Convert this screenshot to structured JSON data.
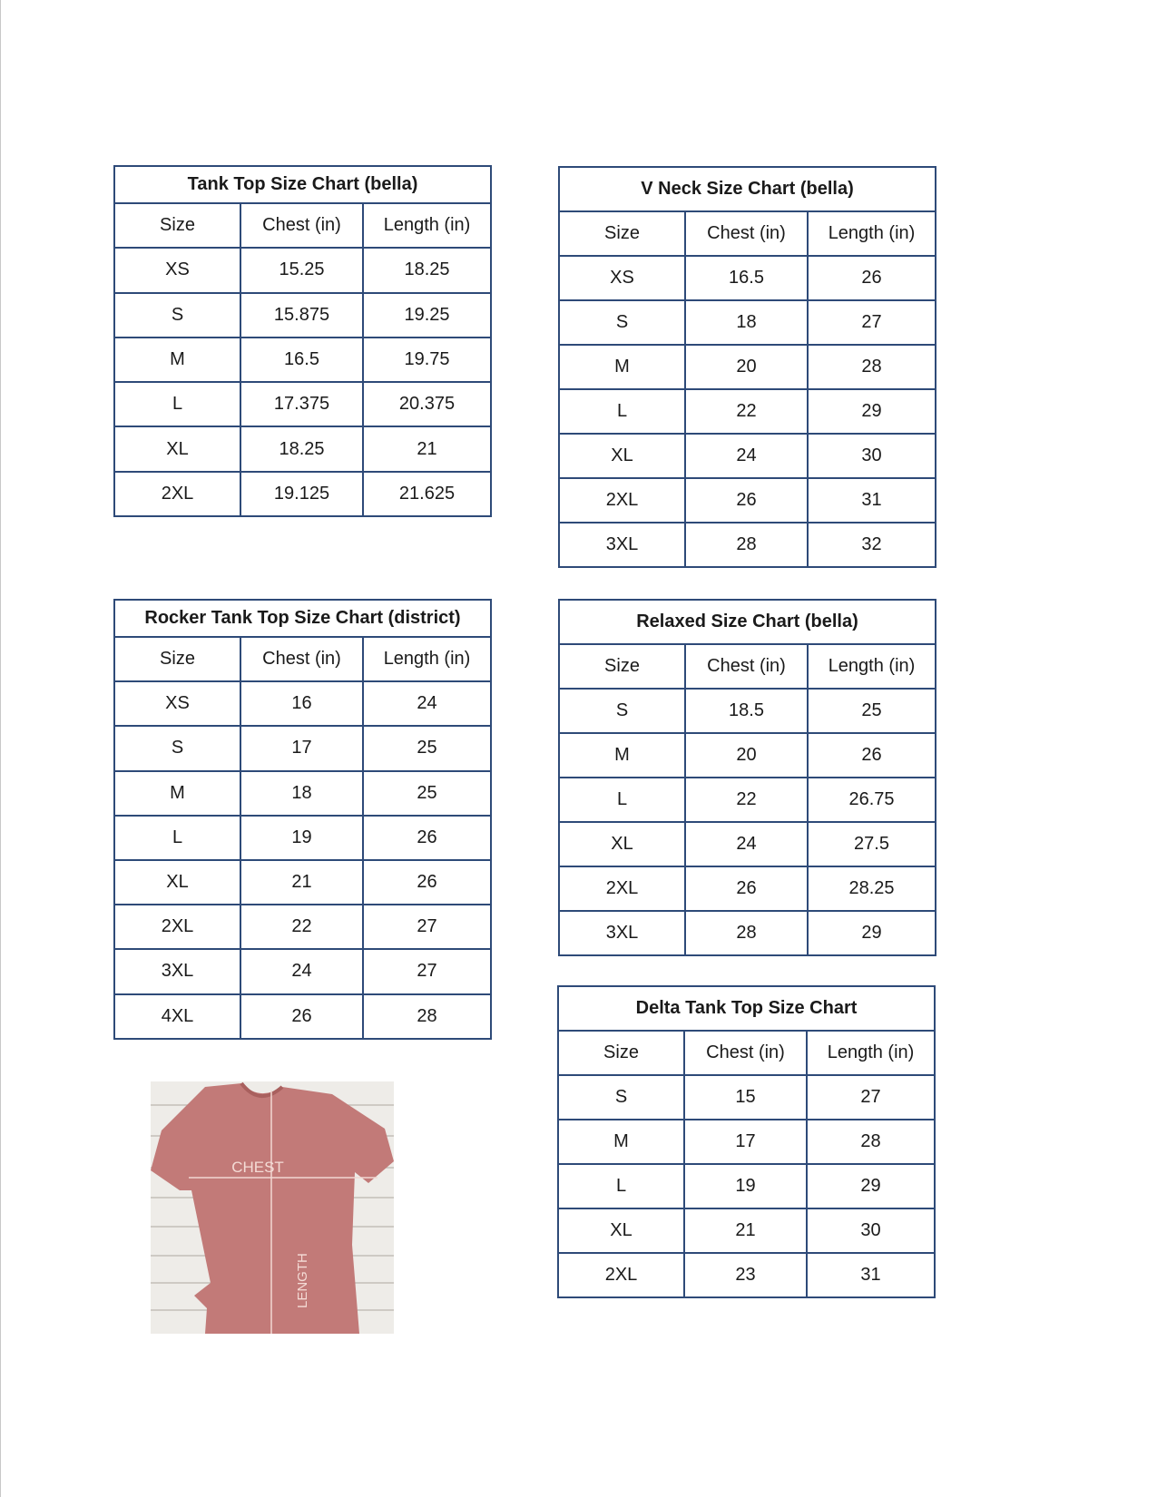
{
  "tables": [
    {
      "id": "tank-top-bella",
      "title": "Tank Top Size Chart  (bella)",
      "headers": [
        "Size",
        "Chest (in)",
        "Length (in)"
      ],
      "rows": [
        [
          "XS",
          "15.25",
          "18.25"
        ],
        [
          "S",
          "15.875",
          "19.25"
        ],
        [
          "M",
          "16.5",
          "19.75"
        ],
        [
          "L",
          "17.375",
          "20.375"
        ],
        [
          "XL",
          "18.25",
          "21"
        ],
        [
          "2XL",
          "19.125",
          "21.625"
        ]
      ]
    },
    {
      "id": "v-neck-bella",
      "title": "V Neck Size Chart  (bella)",
      "headers": [
        "Size",
        "Chest (in)",
        "Length (in)"
      ],
      "rows": [
        [
          "XS",
          "16.5",
          "26"
        ],
        [
          "S",
          "18",
          "27"
        ],
        [
          "M",
          "20",
          "28"
        ],
        [
          "L",
          "22",
          "29"
        ],
        [
          "XL",
          "24",
          "30"
        ],
        [
          "2XL",
          "26",
          "31"
        ],
        [
          "3XL",
          "28",
          "32"
        ]
      ]
    },
    {
      "id": "rocker-tank-district",
      "title": "Rocker Tank Top Size Chart (district)",
      "headers": [
        "Size",
        "Chest (in)",
        "Length (in)"
      ],
      "rows": [
        [
          "XS",
          "16",
          "24"
        ],
        [
          "S",
          "17",
          "25"
        ],
        [
          "M",
          "18",
          "25"
        ],
        [
          "L",
          "19",
          "26"
        ],
        [
          "XL",
          "21",
          "26"
        ],
        [
          "2XL",
          "22",
          "27"
        ],
        [
          "3XL",
          "24",
          "27"
        ],
        [
          "4XL",
          "26",
          "28"
        ]
      ]
    },
    {
      "id": "relaxed-bella",
      "title": "Relaxed Size Chart (bella)",
      "headers": [
        "Size",
        "Chest (in)",
        "Length (in)"
      ],
      "rows": [
        [
          "S",
          "18.5",
          "25"
        ],
        [
          "M",
          "20",
          "26"
        ],
        [
          "L",
          "22",
          "26.75"
        ],
        [
          "XL",
          "24",
          "27.5"
        ],
        [
          "2XL",
          "26",
          "28.25"
        ],
        [
          "3XL",
          "28",
          "29"
        ]
      ]
    },
    {
      "id": "delta-tank",
      "title": "Delta Tank Top Size Chart",
      "headers": [
        "Size",
        "Chest (in)",
        "Length (in)"
      ],
      "rows": [
        [
          "S",
          "15",
          "27"
        ],
        [
          "M",
          "17",
          "28"
        ],
        [
          "L",
          "19",
          "29"
        ],
        [
          "XL",
          "21",
          "30"
        ],
        [
          "2XL",
          "23",
          "31"
        ]
      ]
    }
  ],
  "photo": {
    "chest_label": "CHEST",
    "length_label": "LENGTH",
    "shirt_color": "#c27a78"
  },
  "colors": {
    "table_border": "#2e4a78"
  }
}
